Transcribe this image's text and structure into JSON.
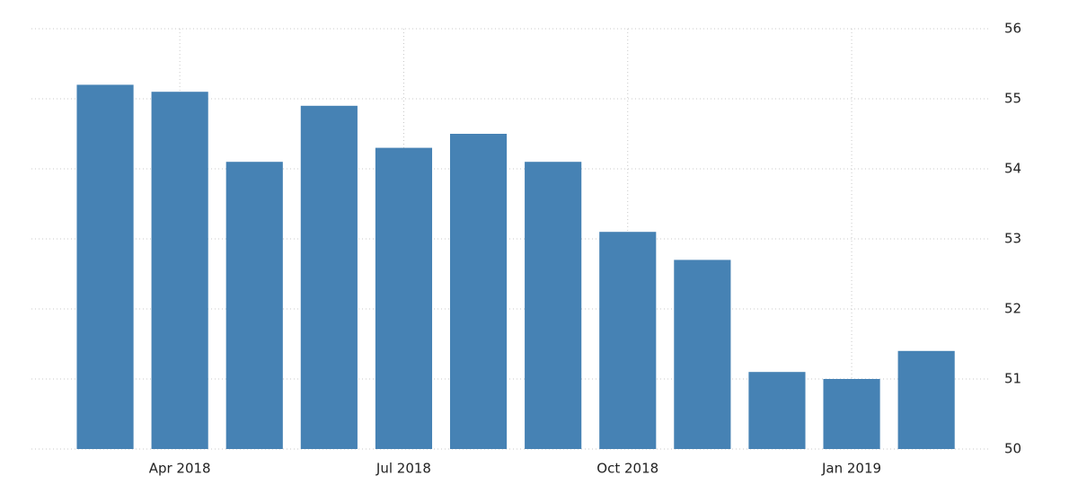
{
  "chart_data": {
    "type": "bar",
    "categories": [
      null,
      "Apr 2018",
      null,
      null,
      "Jul 2018",
      null,
      null,
      "Oct 2018",
      null,
      null,
      "Jan 2019",
      null
    ],
    "values": [
      55.2,
      55.1,
      54.1,
      54.9,
      54.3,
      54.5,
      54.1,
      53.1,
      52.7,
      51.1,
      51.0,
      51.4
    ],
    "color": "#4682b4",
    "ylim": [
      50,
      56
    ],
    "yticks": [
      50,
      51,
      52,
      53,
      54,
      55,
      56
    ],
    "grid": true
  }
}
